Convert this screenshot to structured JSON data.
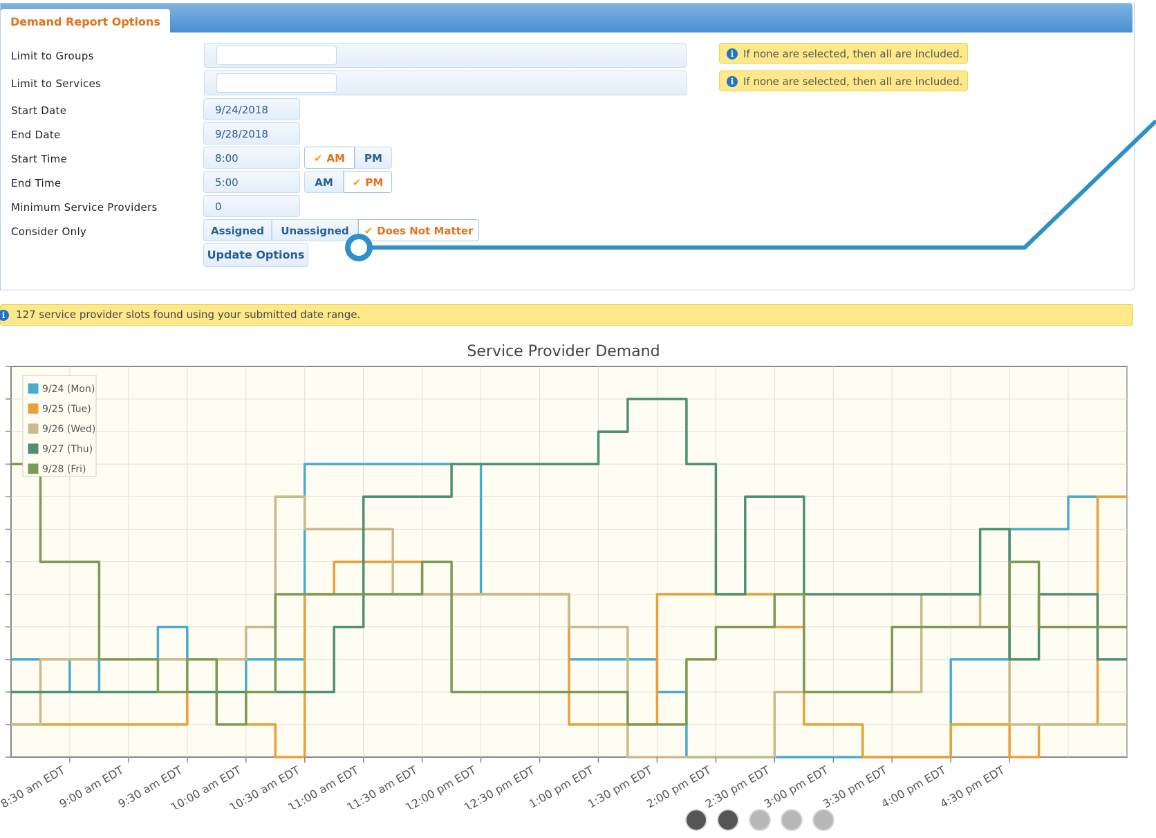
{
  "panel": {
    "tab_title": "Demand Report Options",
    "rows": {
      "groups_label": "Limit to Groups",
      "services_label": "Limit to Services",
      "start_date_label": "Start Date",
      "end_date_label": "End Date",
      "start_time_label": "Start Time",
      "end_time_label": "End Time",
      "min_providers_label": "Minimum Service Providers",
      "consider_label": "Consider Only"
    },
    "hint_text": "If none are selected, then all are included.",
    "start_date": "9/24/2018",
    "end_date": "9/28/2018",
    "start_time": "8:00",
    "end_time": "5:00",
    "min_providers": "0",
    "am_label": "AM",
    "pm_label": "PM",
    "start_meridiem": "AM",
    "end_meridiem": "PM",
    "consider_options": [
      "Assigned",
      "Unassigned",
      "Does Not Matter"
    ],
    "consider_selected": "Does Not Matter",
    "update_label": "Update Options"
  },
  "info_bar": "127 service provider slots found using your submitted date range.",
  "colors": {
    "accent": "#e0731c",
    "link": "#2a5d93",
    "header": "#4a8fd0",
    "annotation": "#2f8fc7",
    "hint_bg": "#fde88a"
  },
  "chart_data": {
    "type": "line",
    "step": true,
    "title": "Service Provider Demand",
    "x_start": "8:00 am EDT",
    "x_step_minutes": 15,
    "x_tick_labels": [
      "8:30 am EDT",
      "9:00 am EDT",
      "9:30 am EDT",
      "10:00 am EDT",
      "10:30 am EDT",
      "11:00 am EDT",
      "11:30 am EDT",
      "12:00 pm EDT",
      "12:30 pm EDT",
      "1:00 pm EDT",
      "1:30 pm EDT",
      "2:00 pm EDT",
      "2:30 pm EDT",
      "3:00 pm EDT",
      "3:30 pm EDT",
      "4:00 pm EDT",
      "4:30 pm EDT"
    ],
    "ylim": [
      0,
      12
    ],
    "grid": true,
    "legend_position": "top-left",
    "series": [
      {
        "name": "9/24 (Mon)",
        "color": "#4aaccc",
        "values": [
          3,
          3,
          2,
          3,
          3,
          4,
          3,
          2,
          3,
          3,
          9,
          9,
          9,
          9,
          9,
          9,
          5,
          5,
          5,
          3,
          3,
          3,
          2,
          0,
          0,
          0,
          0,
          0,
          0,
          0,
          0,
          0,
          3,
          3,
          7,
          7,
          8,
          8
        ]
      },
      {
        "name": "9/25 (Tue)",
        "color": "#e8a03a",
        "values": [
          1,
          1,
          1,
          1,
          1,
          1,
          2,
          2,
          1,
          0,
          5,
          6,
          6,
          6,
          5,
          5,
          5,
          5,
          5,
          1,
          1,
          1,
          5,
          5,
          5,
          5,
          4,
          1,
          1,
          0,
          0,
          0,
          1,
          1,
          0,
          1,
          1,
          8
        ]
      },
      {
        "name": "9/26 (Wed)",
        "color": "#c9b98b",
        "values": [
          1,
          3,
          3,
          3,
          3,
          3,
          3,
          3,
          4,
          8,
          7,
          7,
          7,
          5,
          5,
          5,
          5,
          5,
          5,
          4,
          4,
          0,
          0,
          0,
          0,
          0,
          2,
          2,
          2,
          2,
          2,
          5,
          5,
          4,
          1,
          1,
          1,
          1
        ]
      },
      {
        "name": "9/27 (Thu)",
        "color": "#4e8f6f",
        "values": [
          2,
          2,
          2,
          2,
          2,
          2,
          2,
          2,
          2,
          2,
          2,
          4,
          8,
          8,
          8,
          9,
          9,
          9,
          9,
          9,
          10,
          11,
          11,
          9,
          5,
          8,
          8,
          5,
          5,
          5,
          5,
          5,
          5,
          7,
          3,
          5,
          5,
          3
        ]
      },
      {
        "name": "9/28 (Fri)",
        "color": "#7a9a55",
        "values": [
          9,
          6,
          6,
          3,
          3,
          2,
          3,
          1,
          2,
          5,
          5,
          5,
          5,
          5,
          6,
          2,
          2,
          2,
          2,
          2,
          2,
          1,
          1,
          3,
          4,
          4,
          5,
          2,
          2,
          2,
          4,
          4,
          4,
          4,
          6,
          4,
          4,
          4
        ]
      }
    ]
  }
}
